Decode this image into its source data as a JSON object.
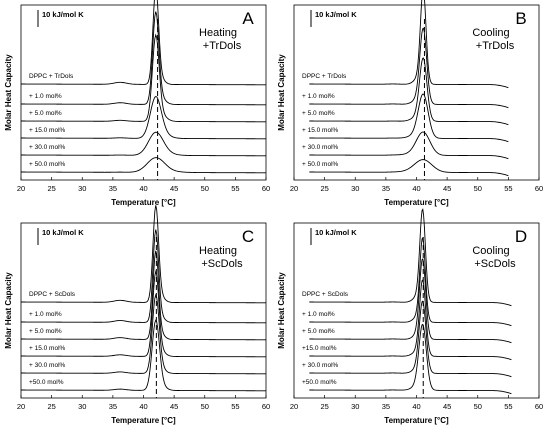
{
  "chart_data": [
    {
      "type": "line",
      "panel_letter": "A",
      "title_lines": [
        "Heating",
        "+TrDols"
      ],
      "xlabel": "Temperature [°C]",
      "ylabel": "Molar Heat Capacity",
      "xlim": [
        20,
        60
      ],
      "x_ticks": [
        "20",
        "25",
        "30",
        "35",
        "40",
        "45",
        "50",
        "55",
        "60"
      ],
      "scale_bar": "10 kJ/mol K",
      "x_start": 20,
      "x_end": 60,
      "peak_x": 42.0,
      "dashed_x": 42.3,
      "series": [
        {
          "label": "DPPC   + TrDols",
          "peak": 92,
          "width": 0.45,
          "shoulder": 0.7,
          "shoulder_shift": 0.6,
          "pre": 2.0
        },
        {
          "label": "+   1.0 mol%",
          "peak": 88,
          "width": 0.5,
          "shoulder": 0.8,
          "shoulder_shift": 0.7,
          "pre": 1.6
        },
        {
          "label": "+   5.0 mol%",
          "peak": 82,
          "width": 0.55,
          "shoulder": 0.9,
          "shoulder_shift": 0.8,
          "pre": 1.0
        },
        {
          "label": "+ 15.0 mol%",
          "peak": 40,
          "width": 0.9,
          "shoulder": 1.2,
          "shoulder_shift": 1.2,
          "pre": 0.5
        },
        {
          "label": "+ 30.0 mol%",
          "peak": 22,
          "width": 1.2,
          "shoulder": 1.6,
          "shoulder_shift": 1.4,
          "pre": 0.3
        },
        {
          "label": "+ 50.0 mol%",
          "peak": 14,
          "width": 1.4,
          "shoulder": 2.0,
          "shoulder_shift": 1.6,
          "pre": 0.2
        }
      ]
    },
    {
      "type": "line",
      "panel_letter": "B",
      "title_lines": [
        "Cooling",
        "+TrDols"
      ],
      "xlabel": "Temperature [°C]",
      "ylabel": "Molar Heat Capacity",
      "xlim": [
        20,
        60
      ],
      "x_ticks": [
        "20",
        "25",
        "30",
        "35",
        "40",
        "45",
        "50",
        "55",
        "60"
      ],
      "scale_bar": "10 kJ/mol K",
      "x_start": 22.5,
      "x_end": 55,
      "peak_x": 41.1,
      "dashed_x": 41.3,
      "series": [
        {
          "label": "DPPC   + TrDols",
          "peak": 90,
          "width": 0.45,
          "shoulder": 0.8,
          "shoulder_shift": -0.6,
          "pre": 0.3
        },
        {
          "label": "+   1.0 mol%",
          "peak": 72,
          "width": 0.55,
          "shoulder": 0.9,
          "shoulder_shift": -0.7,
          "pre": 0.3
        },
        {
          "label": "+   5.0 mol%",
          "peak": 60,
          "width": 0.6,
          "shoulder": 1.0,
          "shoulder_shift": -0.8,
          "pre": 0.2
        },
        {
          "label": "+ 15.0 mol%",
          "peak": 42,
          "width": 0.8,
          "shoulder": 1.2,
          "shoulder_shift": -1.0,
          "pre": 0.2
        },
        {
          "label": "+ 30.0 mol%",
          "peak": 22,
          "width": 1.1,
          "shoulder": 1.6,
          "shoulder_shift": -1.2,
          "pre": 0.2
        },
        {
          "label": "+ 50.0 mol%",
          "peak": 12,
          "width": 1.4,
          "shoulder": 2.0,
          "shoulder_shift": -1.4,
          "pre": 0.1
        }
      ]
    },
    {
      "type": "line",
      "panel_letter": "C",
      "title_lines": [
        "Heating",
        "+ScDols"
      ],
      "xlabel": "Temperature [°C]",
      "ylabel": "Molar Heat Capacity",
      "xlim": [
        20,
        60
      ],
      "x_ticks": [
        "20",
        "25",
        "30",
        "35",
        "40",
        "45",
        "50",
        "55",
        "60"
      ],
      "scale_bar": "10 kJ/mol K",
      "x_start": 20,
      "x_end": 60,
      "peak_x": 42.0,
      "dashed_x": 42.1,
      "series": [
        {
          "label": "DPPC + ScDols",
          "peak": 92,
          "width": 0.45,
          "shoulder": 0.7,
          "shoulder_shift": 0.6,
          "pre": 2.0
        },
        {
          "label": "+   1.0 mol%",
          "peak": 88,
          "width": 0.45,
          "shoulder": 0.7,
          "shoulder_shift": 0.6,
          "pre": 1.8
        },
        {
          "label": "+   5.0 mol%",
          "peak": 84,
          "width": 0.45,
          "shoulder": 0.7,
          "shoulder_shift": 0.6,
          "pre": 1.7
        },
        {
          "label": "+ 15.0 mol%",
          "peak": 80,
          "width": 0.5,
          "shoulder": 0.8,
          "shoulder_shift": 0.6,
          "pre": 1.5
        },
        {
          "label": "+ 30.0 mol%",
          "peak": 74,
          "width": 0.55,
          "shoulder": 0.8,
          "shoulder_shift": 0.6,
          "pre": 1.4
        },
        {
          "label": "+50.0 mol%",
          "peak": 66,
          "width": 0.6,
          "shoulder": 0.9,
          "shoulder_shift": 0.6,
          "pre": 1.2
        }
      ]
    },
    {
      "type": "line",
      "panel_letter": "D",
      "title_lines": [
        "Cooling",
        "+ScDols"
      ],
      "xlabel": "Temperature [°C]",
      "ylabel": "Molar Heat Capacity",
      "xlim": [
        20,
        60
      ],
      "x_ticks": [
        "20",
        "25",
        "30",
        "35",
        "40",
        "45",
        "50",
        "55",
        "60"
      ],
      "scale_bar": "10 kJ/mol K",
      "x_start": 22.5,
      "x_end": 55.5,
      "peak_x": 41.0,
      "dashed_x": 41.1,
      "series": [
        {
          "label": "DPPC + ScDols",
          "peak": 88,
          "width": 0.45,
          "shoulder": 0.8,
          "shoulder_shift": -0.6,
          "pre": 0.3
        },
        {
          "label": "+   1.0 mol%",
          "peak": 80,
          "width": 0.45,
          "shoulder": 0.8,
          "shoulder_shift": -0.6,
          "pre": 0.3
        },
        {
          "label": "+   5.0 mol%",
          "peak": 76,
          "width": 0.5,
          "shoulder": 0.8,
          "shoulder_shift": -0.6,
          "pre": 0.3
        },
        {
          "label": "+15.0 mol%",
          "peak": 72,
          "width": 0.5,
          "shoulder": 0.9,
          "shoulder_shift": -0.6,
          "pre": 0.3
        },
        {
          "label": "+ 30.0 mol%",
          "peak": 68,
          "width": 0.55,
          "shoulder": 0.9,
          "shoulder_shift": -0.6,
          "pre": 0.3
        },
        {
          "label": "+50.0 mol%",
          "peak": 62,
          "width": 0.6,
          "shoulder": 1.0,
          "shoulder_shift": -0.6,
          "pre": 0.3
        }
      ]
    }
  ]
}
